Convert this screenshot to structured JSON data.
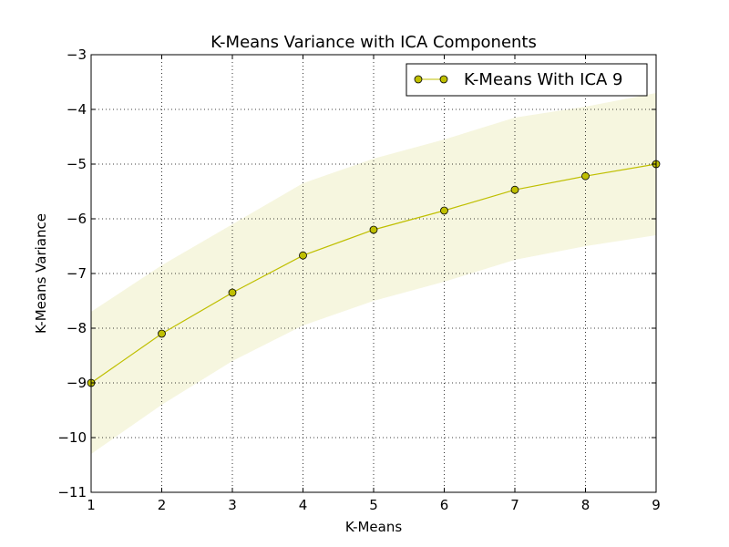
{
  "chart_data": {
    "type": "line",
    "title": "K-Means Variance with ICA Components",
    "xlabel": "K-Means",
    "ylabel": "K-Means Variance",
    "xlim": [
      1,
      9
    ],
    "ylim": [
      -11,
      -3
    ],
    "x_ticks": [
      1,
      2,
      3,
      4,
      5,
      6,
      7,
      8,
      9
    ],
    "y_ticks": [
      -11,
      -10,
      -9,
      -8,
      -7,
      -6,
      -5,
      -4,
      -3
    ],
    "y_tick_labels": [
      "−11",
      "−10",
      "−9",
      "−8",
      "−7",
      "−6",
      "−5",
      "−4",
      "−3"
    ],
    "grid": true,
    "legend_position": "top-right",
    "series": [
      {
        "name": "K-Means With ICA 9",
        "color": "#bfbf00",
        "marker": "circle",
        "x": [
          1,
          2,
          3,
          4,
          5,
          6,
          7,
          8,
          9
        ],
        "values": [
          -9.0,
          -8.1,
          -7.35,
          -6.67,
          -6.2,
          -5.85,
          -5.47,
          -5.22,
          -5.0
        ],
        "band_upper": [
          -7.7,
          -6.85,
          -6.1,
          -5.35,
          -4.9,
          -4.55,
          -4.15,
          -3.95,
          -3.7
        ],
        "band_lower": [
          -10.3,
          -9.4,
          -8.6,
          -7.95,
          -7.5,
          -7.15,
          -6.75,
          -6.5,
          -6.3
        ],
        "band_color": "#f5f5dc"
      }
    ]
  }
}
